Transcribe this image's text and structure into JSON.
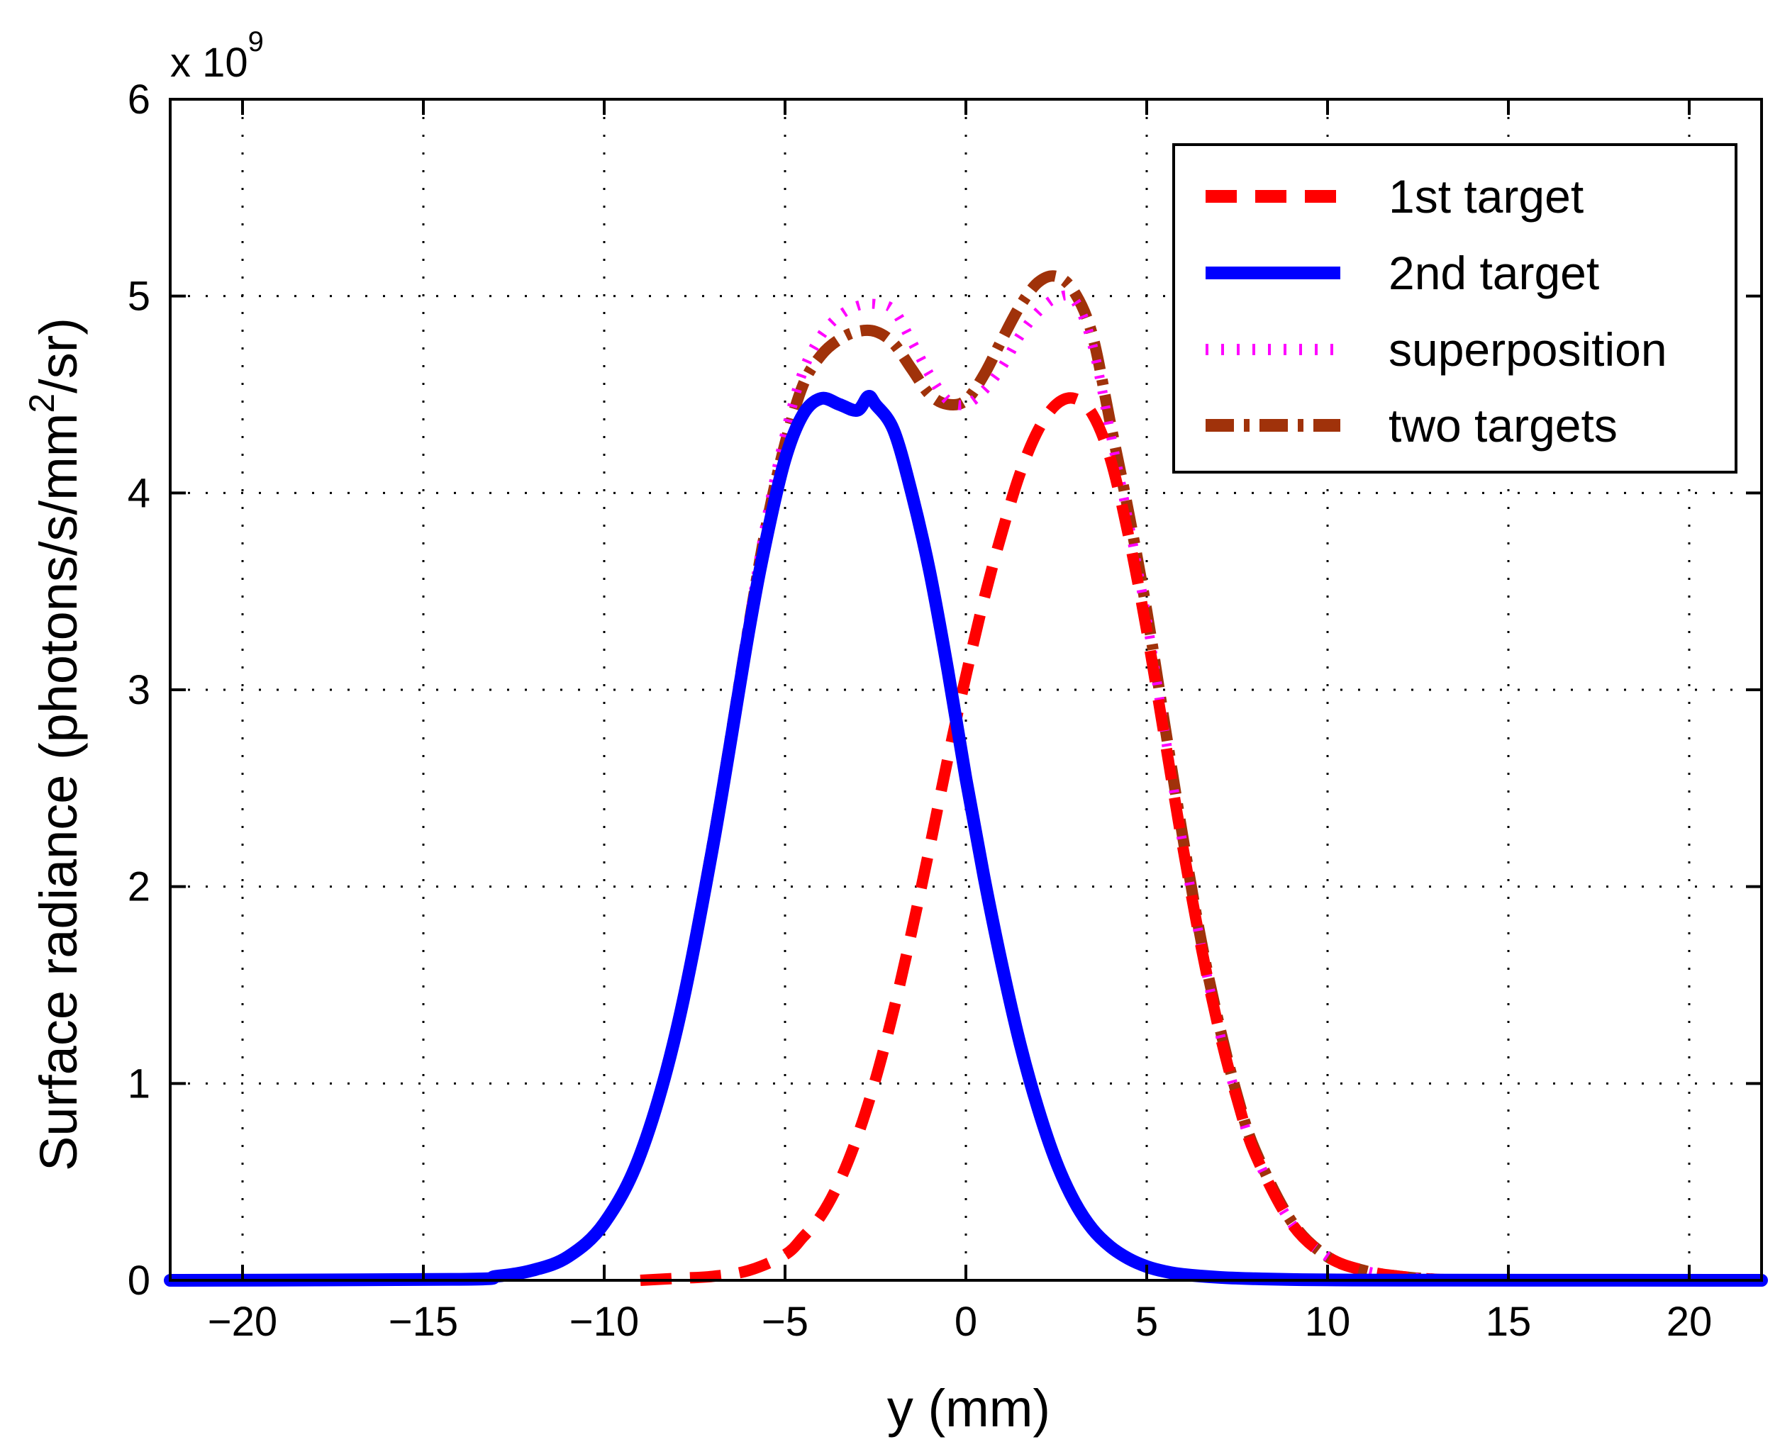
{
  "chart_data": {
    "type": "line",
    "title": "",
    "xlabel": "y (mm)",
    "ylabel_main": "Surface radiance (photons/s/mm",
    "ylabel_sup": "2",
    "ylabel_tail": "/sr)",
    "y_multiplier_base": "x 10",
    "y_multiplier_exp": "9",
    "xlim": [
      -22,
      22
    ],
    "ylim": [
      0,
      6
    ],
    "xticks": [
      -20,
      -15,
      -10,
      -5,
      0,
      5,
      10,
      15,
      20
    ],
    "xtick_labels": [
      "−20",
      "−15",
      "−10",
      "−5",
      "0",
      "5",
      "10",
      "15",
      "20"
    ],
    "yticks": [
      0,
      1,
      2,
      3,
      4,
      5,
      6
    ],
    "ytick_labels": [
      "0",
      "1",
      "2",
      "3",
      "4",
      "5",
      "6"
    ],
    "grid": true,
    "legend_position": "top-right",
    "series": [
      {
        "name": "1st target",
        "color": "#ff0000",
        "style": "dashed",
        "x": [
          -9,
          -8,
          -7,
          -6,
          -5,
          -4.5,
          -4,
          -3.5,
          -3,
          -2.5,
          -2,
          -1.5,
          -1,
          -0.5,
          0,
          0.5,
          1,
          1.5,
          2,
          2.5,
          3,
          3.5,
          4,
          4.5,
          5,
          5.5,
          6,
          6.5,
          7,
          7.5,
          8,
          9,
          10,
          11,
          12,
          13,
          14
        ],
        "values": [
          0,
          0.01,
          0.02,
          0.05,
          0.13,
          0.22,
          0.33,
          0.5,
          0.73,
          1.02,
          1.37,
          1.77,
          2.2,
          2.65,
          3.07,
          3.46,
          3.8,
          4.1,
          4.32,
          4.45,
          4.48,
          4.4,
          4.17,
          3.78,
          3.3,
          2.75,
          2.2,
          1.7,
          1.27,
          0.92,
          0.64,
          0.29,
          0.12,
          0.05,
          0.02,
          0.005,
          0
        ]
      },
      {
        "name": "2nd target",
        "color": "#0000ff",
        "style": "solid",
        "x": [
          -22,
          -14,
          -13,
          -12,
          -11,
          -10,
          -9,
          -8,
          -7,
          -6,
          -5.5,
          -5,
          -4.5,
          -4,
          -3.5,
          -3,
          -2.7,
          -2.5,
          -2,
          -1.5,
          -1,
          -0.5,
          0,
          0.5,
          1,
          1.5,
          2,
          2.5,
          3,
          3.5,
          4,
          4.5,
          5,
          5.5,
          6,
          7,
          8,
          9,
          10,
          12,
          22
        ],
        "values": [
          0,
          0.005,
          0.02,
          0.05,
          0.12,
          0.29,
          0.64,
          1.27,
          2.2,
          3.3,
          3.78,
          4.17,
          4.4,
          4.48,
          4.45,
          4.42,
          4.49,
          4.45,
          4.32,
          4.0,
          3.6,
          3.1,
          2.55,
          2.05,
          1.6,
          1.2,
          0.87,
          0.6,
          0.4,
          0.26,
          0.17,
          0.11,
          0.07,
          0.045,
          0.03,
          0.015,
          0.008,
          0.004,
          0.002,
          0.001,
          0
        ]
      },
      {
        "name": "superposition",
        "color": "#ff00ff",
        "style": "dotted",
        "x": [
          -22,
          -14,
          -13,
          -12,
          -11,
          -10,
          -9,
          -8,
          -7,
          -6,
          -5.5,
          -5,
          -4.5,
          -4,
          -3.5,
          -3,
          -2.5,
          -2,
          -1.5,
          -1,
          -0.5,
          0,
          0.5,
          1,
          1.5,
          2,
          2.5,
          3,
          3.5,
          4,
          4.5,
          5,
          5.5,
          6,
          6.5,
          7,
          7.5,
          8,
          9,
          10,
          11,
          12,
          13,
          14,
          22
        ],
        "values": [
          0,
          0.005,
          0.02,
          0.05,
          0.12,
          0.29,
          0.64,
          1.28,
          2.22,
          3.35,
          3.88,
          4.3,
          4.62,
          4.8,
          4.9,
          4.95,
          4.96,
          4.93,
          4.77,
          4.6,
          4.47,
          4.45,
          4.52,
          4.64,
          4.8,
          4.92,
          4.99,
          4.98,
          4.75,
          4.3,
          3.85,
          3.36,
          2.78,
          2.21,
          1.7,
          1.27,
          0.92,
          0.64,
          0.29,
          0.12,
          0.05,
          0.02,
          0.005,
          0,
          0
        ]
      },
      {
        "name": "two targets",
        "color": "#a0320a",
        "style": "dashdot",
        "x": [
          -22,
          -14,
          -13,
          -12,
          -11,
          -10,
          -9,
          -8,
          -7,
          -6,
          -5.5,
          -5,
          -4.5,
          -4,
          -3.5,
          -3,
          -2.5,
          -2,
          -1.5,
          -1,
          -0.5,
          0,
          0.5,
          1,
          1.5,
          2,
          2.5,
          3,
          3.5,
          4,
          4.5,
          5,
          5.5,
          6,
          6.5,
          7,
          7.5,
          8,
          9,
          10,
          11,
          12,
          13,
          14,
          22
        ],
        "values": [
          0,
          0.005,
          0.02,
          0.05,
          0.12,
          0.29,
          0.64,
          1.28,
          2.22,
          3.33,
          3.85,
          4.25,
          4.55,
          4.7,
          4.78,
          4.82,
          4.82,
          4.76,
          4.63,
          4.5,
          4.45,
          4.47,
          4.6,
          4.78,
          4.95,
          5.07,
          5.1,
          5.02,
          4.8,
          4.35,
          3.9,
          3.4,
          2.82,
          2.25,
          1.73,
          1.3,
          0.94,
          0.66,
          0.3,
          0.12,
          0.05,
          0.02,
          0.005,
          0,
          0
        ]
      }
    ]
  }
}
